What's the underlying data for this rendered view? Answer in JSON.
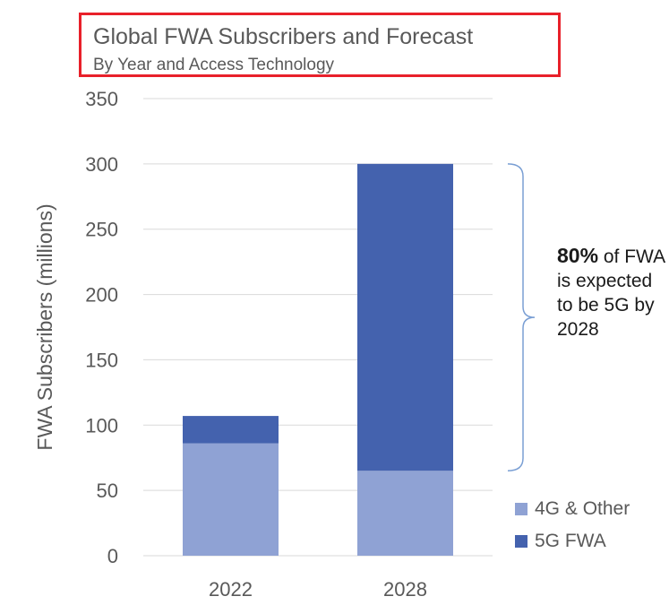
{
  "chart_data": {
    "type": "bar",
    "stacked": true,
    "title": "Global FWA Subscribers and Forecast",
    "subtitle": "By Year and Access Technology",
    "categories": [
      "2022",
      "2028"
    ],
    "series": [
      {
        "name": "4G & Other",
        "color": "#8fa2d4",
        "values": [
          86,
          65
        ]
      },
      {
        "name": "5G FWA",
        "color": "#4462ae",
        "values": [
          21,
          235
        ]
      }
    ],
    "ylabel": "FWA Subscribers (millions)",
    "xlabel": "",
    "ylim": [
      0,
      350
    ],
    "yticks": [
      0,
      50,
      100,
      150,
      200,
      250,
      300,
      350
    ],
    "grid": true,
    "legend": "bottom-right",
    "annotation": {
      "bold": "80%",
      "text": " of FWA is expected to be 5G by 2028"
    }
  },
  "colors": {
    "brace": "#7a9fd4",
    "grid": "#d9d9d9",
    "title_border": "#e8202a",
    "text": "#595959"
  }
}
